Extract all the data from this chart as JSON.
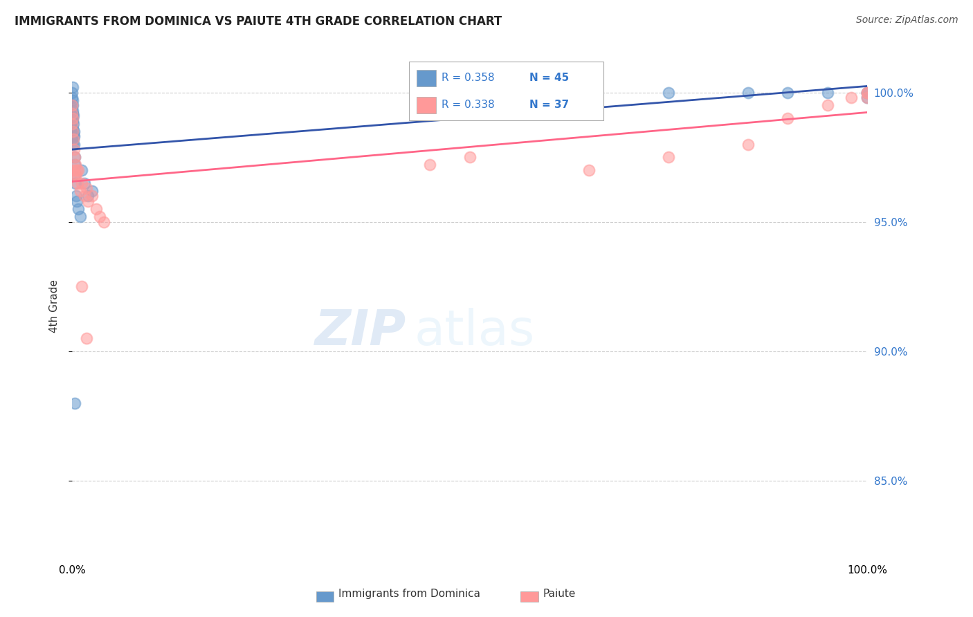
{
  "title": "IMMIGRANTS FROM DOMINICA VS PAIUTE 4TH GRADE CORRELATION CHART",
  "source": "Source: ZipAtlas.com",
  "ylabel": "4th Grade",
  "yticks": [
    85.0,
    90.0,
    95.0,
    100.0
  ],
  "ytick_labels": [
    "85.0%",
    "90.0%",
    "95.0%",
    "100.0%"
  ],
  "xlim": [
    0.0,
    100.0
  ],
  "ylim": [
    82.0,
    101.5
  ],
  "blue_color": "#6699CC",
  "pink_color": "#FF9999",
  "blue_line_color": "#3355AA",
  "pink_line_color": "#FF6688",
  "legend_R1": "R = 0.358",
  "legend_N1": "N = 45",
  "legend_R2": "R = 0.338",
  "legend_N2": "N = 37",
  "watermark_zip": "ZIP",
  "watermark_atlas": "atlas",
  "blue_x": [
    0.0,
    0.0,
    0.0,
    0.0,
    0.0,
    0.05,
    0.05,
    0.1,
    0.1,
    0.15,
    0.15,
    0.2,
    0.25,
    0.3,
    0.35,
    0.4,
    0.5,
    0.6,
    0.8,
    1.0,
    1.2,
    1.5,
    2.0,
    2.5,
    0.02,
    0.03,
    0.04,
    0.06,
    0.07,
    0.08,
    0.09,
    0.12,
    0.18,
    0.22,
    0.28,
    55.0,
    65.0,
    75.0,
    85.0,
    90.0,
    95.0,
    100.0,
    100.0,
    100.0,
    0.3
  ],
  "blue_y": [
    100.0,
    99.8,
    99.5,
    99.2,
    99.0,
    99.5,
    99.2,
    99.0,
    98.5,
    98.8,
    98.2,
    98.5,
    98.3,
    97.5,
    96.8,
    96.5,
    96.0,
    95.8,
    95.5,
    95.2,
    97.0,
    96.5,
    96.0,
    96.2,
    100.2,
    99.7,
    99.3,
    98.9,
    98.6,
    98.3,
    98.0,
    99.1,
    98.4,
    98.0,
    97.2,
    100.0,
    100.0,
    100.0,
    100.0,
    100.0,
    100.0,
    100.0,
    100.0,
    99.8,
    88.0
  ],
  "pink_x": [
    0.0,
    0.0,
    0.0,
    0.05,
    0.1,
    0.15,
    0.2,
    0.3,
    0.4,
    0.5,
    0.6,
    0.8,
    1.0,
    1.2,
    1.5,
    2.0,
    2.5,
    3.0,
    3.5,
    4.0,
    0.7,
    1.8,
    45.0,
    50.0,
    65.0,
    75.0,
    85.0,
    90.0,
    95.0,
    98.0,
    100.0,
    100.0,
    100.0,
    1.2,
    1.8,
    0.25,
    0.35
  ],
  "pink_y": [
    99.5,
    99.2,
    98.8,
    99.0,
    98.5,
    98.2,
    97.8,
    97.5,
    97.2,
    96.8,
    97.0,
    97.0,
    96.2,
    96.5,
    96.0,
    95.8,
    96.0,
    95.5,
    95.2,
    95.0,
    96.5,
    96.3,
    97.2,
    97.5,
    97.0,
    97.5,
    98.0,
    99.0,
    99.5,
    99.8,
    100.0,
    100.0,
    99.8,
    92.5,
    90.5,
    97.0,
    96.8
  ]
}
